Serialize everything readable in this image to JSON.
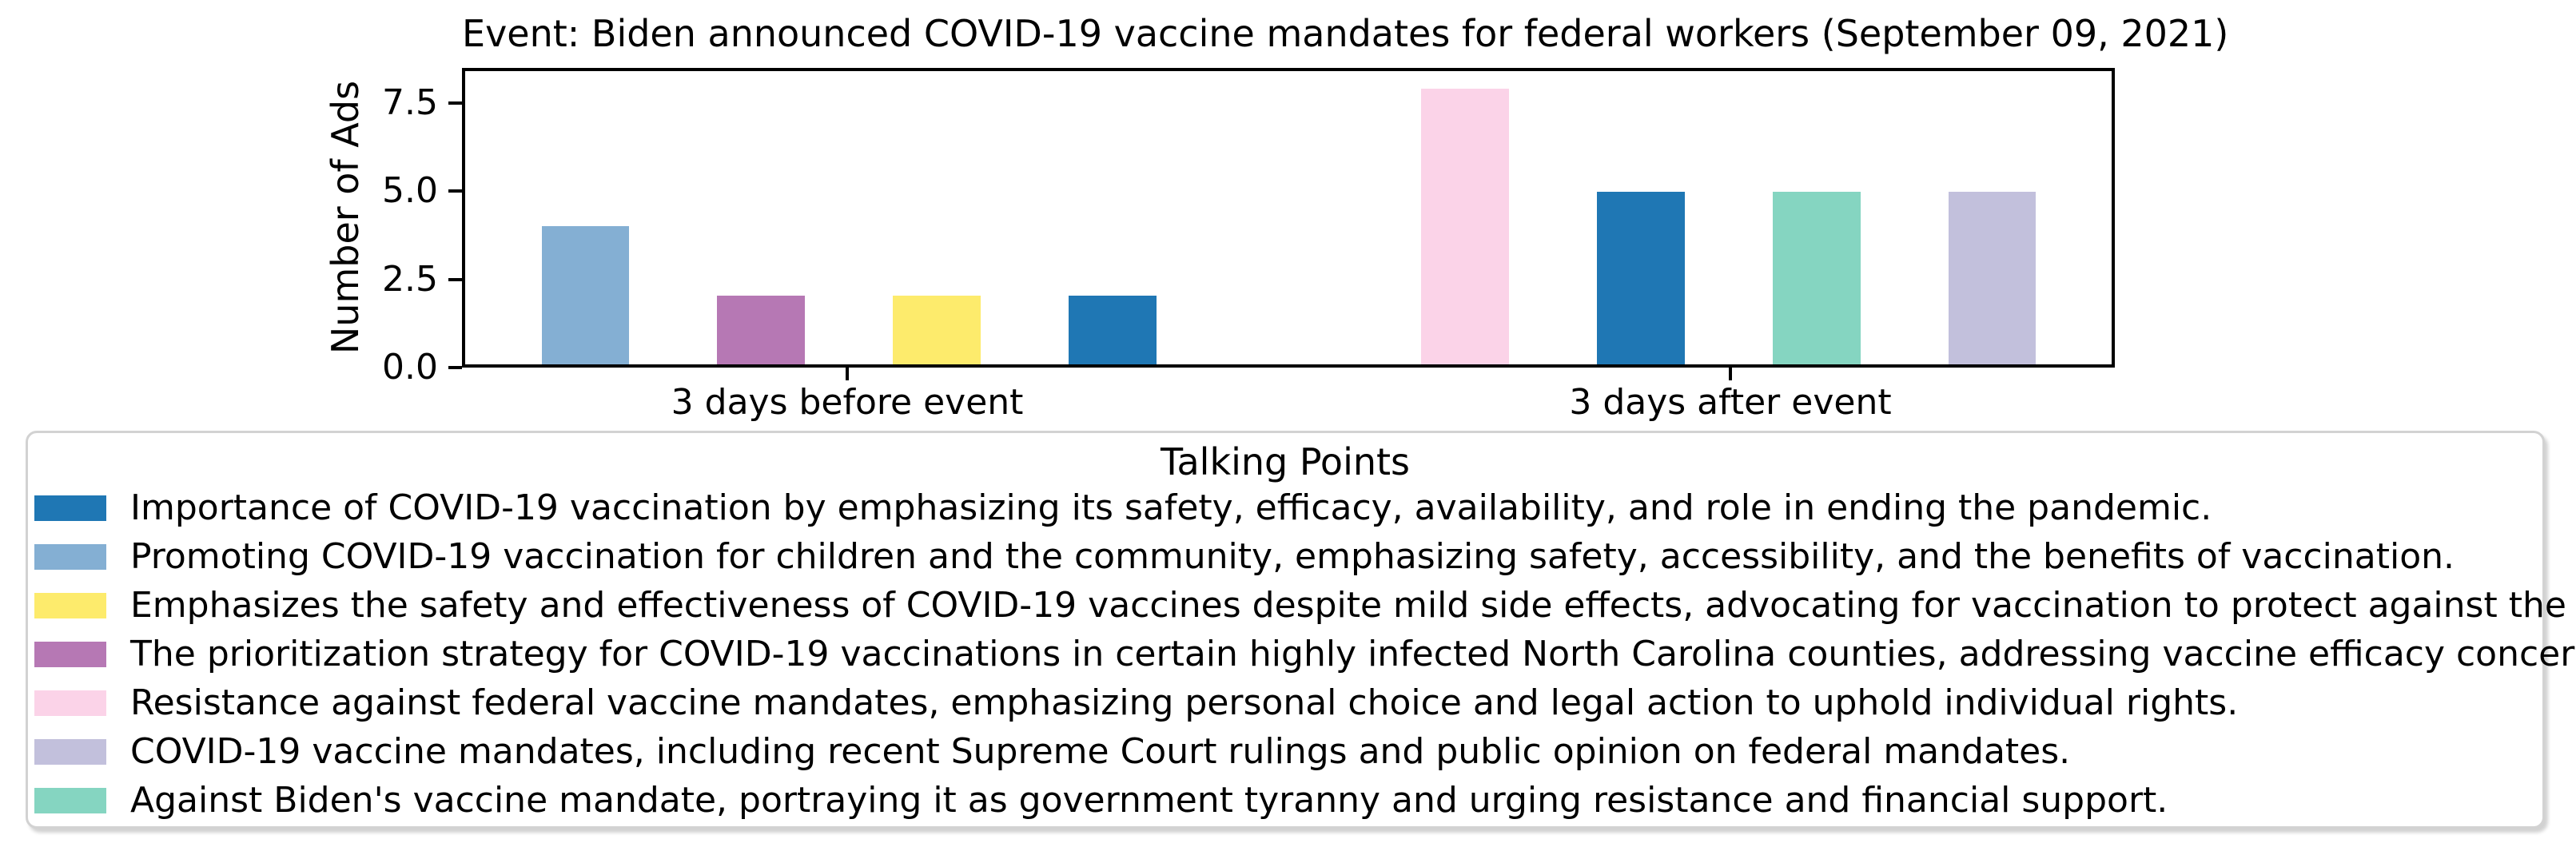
{
  "chart_data": {
    "type": "bar",
    "title": "Event: Biden announced COVID-19 vaccine mandates for federal workers (September 09, 2021)",
    "ylabel": "Number of Ads",
    "xlabel": "",
    "categories": [
      "3 days before event",
      "3 days after event"
    ],
    "ylim": [
      0,
      8.5
    ],
    "grid": false,
    "yticks": [
      {
        "label": "0.0",
        "value": 0
      },
      {
        "label": "2.5",
        "value": 2.5
      },
      {
        "label": "5.0",
        "value": 5
      },
      {
        "label": "7.5",
        "value": 7.5
      }
    ],
    "legend": {
      "title": "Talking Points",
      "position": "bottom",
      "items": [
        {
          "color": "#1f77b4",
          "label": "Importance of COVID-19 vaccination by emphasizing its safety, efficacy, availability, and role in ending the pandemic."
        },
        {
          "color": "#84afd3",
          "label": "Promoting COVID-19 vaccination for children and the community, emphasizing safety, accessibility, and the benefits of vaccination."
        },
        {
          "color": "#fdeb6c",
          "label": "Emphasizes the safety and effectiveness of COVID-19 vaccines despite mild side effects, advocating for vaccination to protect against the virus."
        },
        {
          "color": "#b678b4",
          "label": "The prioritization strategy for COVID-19 vaccinations in certain highly infected North Carolina counties, addressing vaccine efficacy concerns."
        },
        {
          "color": "#fbd3e8",
          "label": "Resistance against federal vaccine mandates, emphasizing personal choice and legal action to uphold individual rights."
        },
        {
          "color": "#c2c0dc",
          "label": "COVID-19 vaccine mandates, including recent Supreme Court rulings and public opinion on federal mandates."
        },
        {
          "color": "#85d5c1",
          "label": "Against Biden's vaccine mandate, portraying it as government tyranny and urging resistance and financial support."
        }
      ]
    },
    "series": [
      {
        "name": "Importance of COVID-19 vaccination by emphasizing its safety, efficacy, availability, and role in ending the pandemic.",
        "values": [
          2,
          5
        ]
      },
      {
        "name": "Promoting COVID-19 vaccination for children and the community, emphasizing safety, accessibility, and the benefits of vaccination.",
        "values": [
          4,
          0
        ]
      },
      {
        "name": "Emphasizes the safety and effectiveness of COVID-19 vaccines despite mild side effects, advocating for vaccination to protect against the virus.",
        "values": [
          2,
          0
        ]
      },
      {
        "name": "The prioritization strategy for COVID-19 vaccinations in certain highly infected North Carolina counties, addressing vaccine efficacy concerns.",
        "values": [
          2,
          0
        ]
      },
      {
        "name": "Resistance against federal vaccine mandates, emphasizing personal choice and legal action to uphold individual rights.",
        "values": [
          0,
          8
        ]
      },
      {
        "name": "COVID-19 vaccine mandates, including recent Supreme Court rulings and public opinion on federal mandates.",
        "values": [
          0,
          5
        ]
      },
      {
        "name": "Against Biden's vaccine mandate, portraying it as government tyranny and urging resistance and financial support.",
        "values": [
          0,
          5
        ]
      }
    ],
    "bars": [
      {
        "category_index": 0,
        "slot": 0,
        "legend_index": 1,
        "value": 4
      },
      {
        "category_index": 0,
        "slot": 1,
        "legend_index": 3,
        "value": 2
      },
      {
        "category_index": 0,
        "slot": 2,
        "legend_index": 2,
        "value": 2
      },
      {
        "category_index": 0,
        "slot": 3,
        "legend_index": 0,
        "value": 2
      },
      {
        "category_index": 1,
        "slot": 0,
        "legend_index": 4,
        "value": 8
      },
      {
        "category_index": 1,
        "slot": 1,
        "legend_index": 0,
        "value": 5
      },
      {
        "category_index": 1,
        "slot": 2,
        "legend_index": 6,
        "value": 5
      },
      {
        "category_index": 1,
        "slot": 3,
        "legend_index": 5,
        "value": 5
      }
    ]
  }
}
